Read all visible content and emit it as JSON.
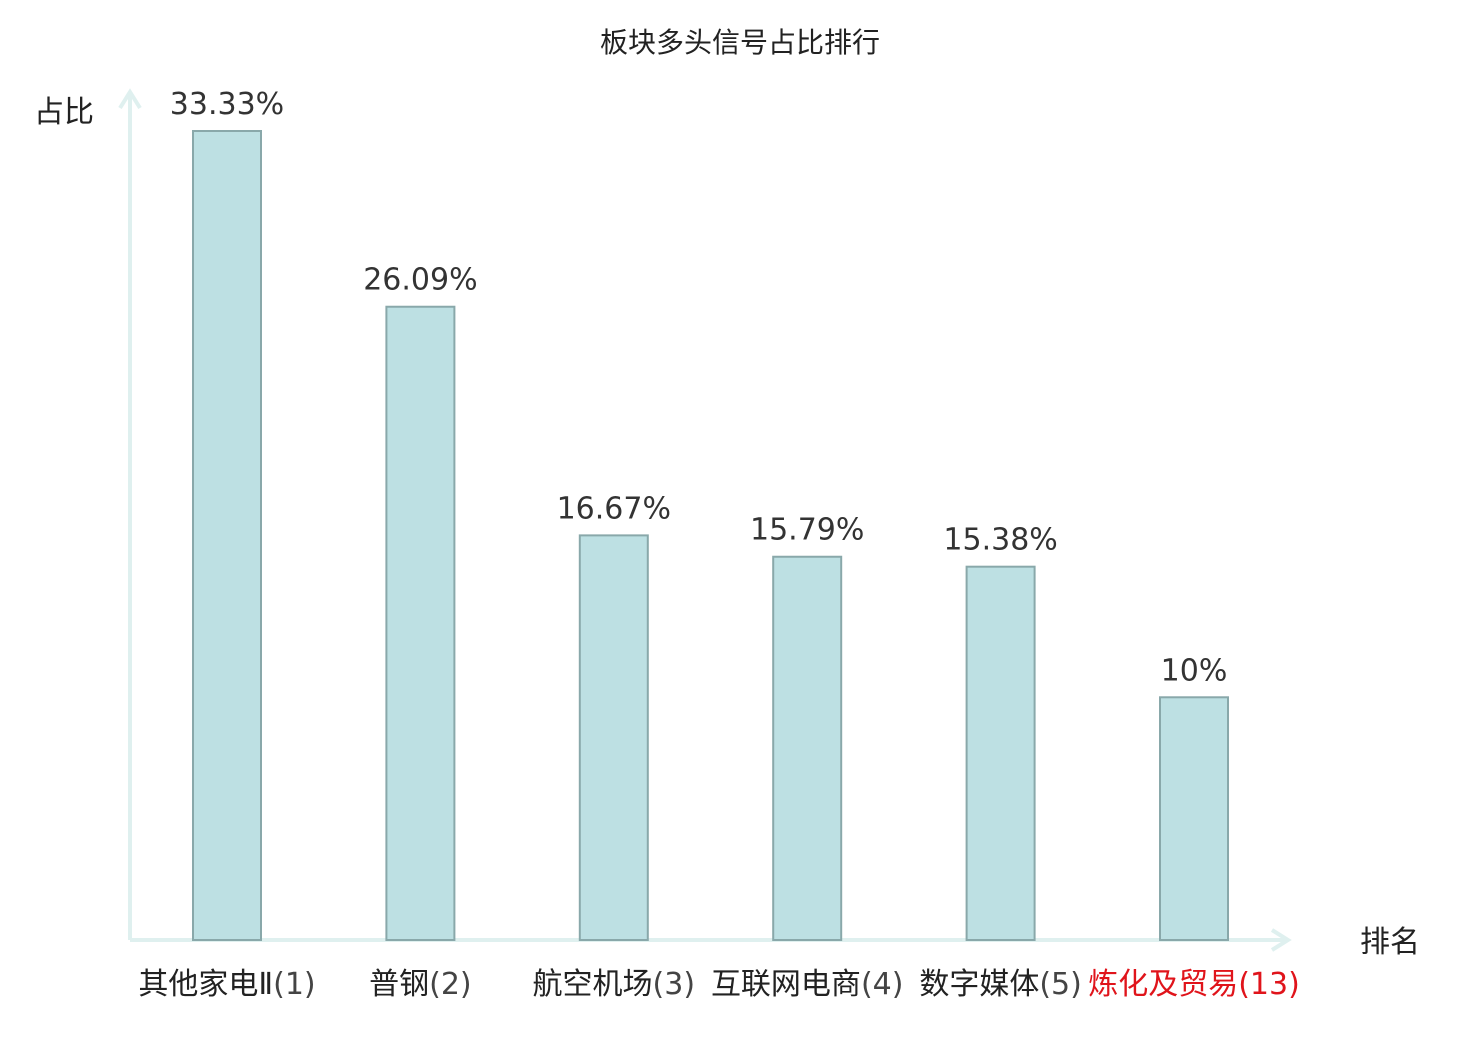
{
  "chart_data": {
    "type": "bar",
    "title": "板块多头信号占比排行",
    "ylabel": "占比",
    "xlabel": "排名",
    "ylim": [
      0,
      33.33
    ],
    "grid": false,
    "legend": "none",
    "categories": [
      {
        "name": "其他家电Ⅱ",
        "rank": "(1)",
        "value": 33.33,
        "value_label": "33.33%",
        "highlight": false
      },
      {
        "name": "普钢",
        "rank": "(2)",
        "value": 26.09,
        "value_label": "26.09%",
        "highlight": false
      },
      {
        "name": "航空机场",
        "rank": "(3)",
        "value": 16.67,
        "value_label": "16.67%",
        "highlight": false
      },
      {
        "name": "互联网电商",
        "rank": "(4)",
        "value": 15.79,
        "value_label": "15.79%",
        "highlight": false
      },
      {
        "name": "数字媒体",
        "rank": "(5)",
        "value": 15.38,
        "value_label": "15.38%",
        "highlight": false
      },
      {
        "name": "炼化及贸易",
        "rank": "(13)",
        "value": 10,
        "value_label": "10%",
        "highlight": true
      }
    ],
    "colors": {
      "bar_fill": "#bde0e3",
      "bar_stroke": "#89a8aa",
      "axis": "#dff0ef",
      "highlight_text": "#e0141b",
      "normal_text": "#222222"
    }
  }
}
